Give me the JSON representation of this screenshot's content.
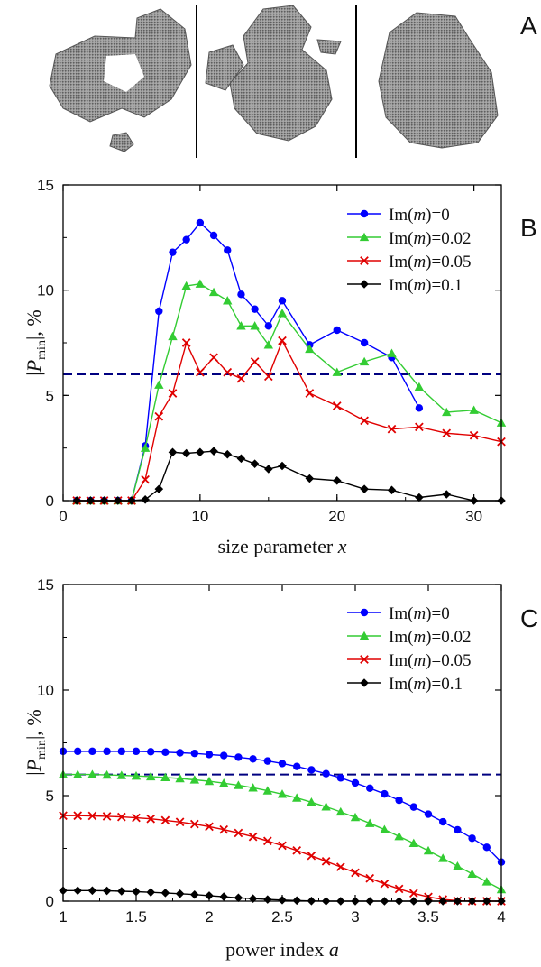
{
  "panel_labels": [
    "A",
    "B",
    "C"
  ],
  "colors": {
    "blue": "#0000ff",
    "green": "#33cc33",
    "red": "#e00000",
    "black": "#000000",
    "reference_line": "#000080",
    "particle_gray": "#8c8c8c"
  },
  "chart_data": [
    {
      "type": "line",
      "panel": "B",
      "xlabel": "size parameter x",
      "ylabel": "|Pmin|, %",
      "xlim": [
        0,
        32
      ],
      "ylim": [
        0,
        15
      ],
      "xticks": [
        "0",
        "10",
        "20",
        "30"
      ],
      "yticks": [
        "0",
        "5",
        "10",
        "15"
      ],
      "reference_line_y": 6,
      "legend_position": "top-right",
      "series": [
        {
          "name": "Im(m)=0",
          "color": "blue",
          "marker": "circle",
          "x": [
            1,
            2,
            3,
            4,
            5,
            6,
            7,
            8,
            9,
            10,
            11,
            12,
            13,
            14,
            15,
            16,
            18,
            20,
            22,
            24,
            26
          ],
          "y": [
            0,
            0,
            0,
            0,
            0,
            2.6,
            9.0,
            11.8,
            12.4,
            13.2,
            12.6,
            11.9,
            9.8,
            9.1,
            8.3,
            9.5,
            7.4,
            8.1,
            7.5,
            6.8,
            4.4
          ]
        },
        {
          "name": "Im(m)=0.02",
          "color": "green",
          "marker": "triangle",
          "x": [
            1,
            2,
            3,
            4,
            5,
            6,
            7,
            8,
            9,
            10,
            11,
            12,
            13,
            14,
            15,
            16,
            18,
            20,
            22,
            24,
            26,
            28,
            30,
            32
          ],
          "y": [
            0,
            0,
            0,
            0,
            0,
            2.5,
            5.5,
            7.8,
            10.2,
            10.3,
            9.9,
            9.5,
            8.3,
            8.3,
            7.4,
            8.9,
            7.2,
            6.1,
            6.6,
            7.0,
            5.4,
            4.2,
            4.3,
            3.7
          ]
        },
        {
          "name": "Im(m)=0.05",
          "color": "red",
          "marker": "cross",
          "x": [
            1,
            2,
            3,
            4,
            5,
            6,
            7,
            8,
            9,
            10,
            11,
            12,
            13,
            14,
            15,
            16,
            18,
            20,
            22,
            24,
            26,
            28,
            30,
            32
          ],
          "y": [
            0,
            0,
            0,
            0,
            0,
            1.0,
            4.0,
            5.1,
            7.5,
            6.1,
            6.8,
            6.1,
            5.8,
            6.6,
            5.9,
            7.6,
            5.1,
            4.5,
            3.8,
            3.4,
            3.5,
            3.2,
            3.1,
            2.8
          ]
        },
        {
          "name": "Im(m)=0.1",
          "color": "black",
          "marker": "diamond",
          "x": [
            1,
            2,
            3,
            4,
            5,
            6,
            7,
            8,
            9,
            10,
            11,
            12,
            13,
            14,
            15,
            16,
            18,
            20,
            22,
            24,
            26,
            28,
            30,
            32
          ],
          "y": [
            0,
            0,
            0,
            0,
            0,
            0.05,
            0.55,
            2.3,
            2.25,
            2.3,
            2.35,
            2.2,
            2.0,
            1.75,
            1.5,
            1.65,
            1.05,
            0.95,
            0.55,
            0.5,
            0.15,
            0.3,
            0,
            0
          ]
        }
      ]
    },
    {
      "type": "line",
      "panel": "C",
      "xlabel": "power index a",
      "ylabel": "|Pmin|, %",
      "xlim": [
        1,
        4
      ],
      "ylim": [
        0,
        15
      ],
      "xticks": [
        "1",
        "1.5",
        "2",
        "2.5",
        "3",
        "3.5",
        "4"
      ],
      "yticks": [
        "0",
        "5",
        "10",
        "15"
      ],
      "reference_line_y": 6,
      "legend_position": "top-right",
      "series": [
        {
          "name": "Im(m)=0",
          "color": "blue",
          "marker": "circle",
          "x": [
            1,
            1.1,
            1.2,
            1.3,
            1.4,
            1.5,
            1.6,
            1.7,
            1.8,
            1.9,
            2,
            2.1,
            2.2,
            2.3,
            2.4,
            2.5,
            2.6,
            2.7,
            2.8,
            2.9,
            3,
            3.1,
            3.2,
            3.3,
            3.4,
            3.5,
            3.6,
            3.7,
            3.8,
            3.9,
            4
          ],
          "y": [
            7.1,
            7.1,
            7.1,
            7.1,
            7.1,
            7.1,
            7.08,
            7.06,
            7.03,
            7.0,
            6.95,
            6.9,
            6.82,
            6.74,
            6.64,
            6.52,
            6.38,
            6.22,
            6.04,
            5.84,
            5.6,
            5.35,
            5.08,
            4.78,
            4.46,
            4.12,
            3.76,
            3.38,
            2.98,
            2.55,
            1.85
          ]
        },
        {
          "name": "Im(m)=0.02",
          "color": "green",
          "marker": "triangle",
          "x": [
            1,
            1.1,
            1.2,
            1.3,
            1.4,
            1.5,
            1.6,
            1.7,
            1.8,
            1.9,
            2,
            2.1,
            2.2,
            2.3,
            2.4,
            2.5,
            2.6,
            2.7,
            2.8,
            2.9,
            3,
            3.1,
            3.2,
            3.3,
            3.4,
            3.5,
            3.6,
            3.7,
            3.8,
            3.9,
            4
          ],
          "y": [
            6.0,
            6.0,
            6.0,
            5.98,
            5.96,
            5.93,
            5.9,
            5.86,
            5.81,
            5.75,
            5.68,
            5.59,
            5.49,
            5.37,
            5.23,
            5.07,
            4.89,
            4.69,
            4.47,
            4.23,
            3.97,
            3.69,
            3.39,
            3.07,
            2.74,
            2.39,
            2.03,
            1.66,
            1.29,
            0.92,
            0.55
          ]
        },
        {
          "name": "Im(m)=0.05",
          "color": "red",
          "marker": "cross",
          "x": [
            1,
            1.1,
            1.2,
            1.3,
            1.4,
            1.5,
            1.6,
            1.7,
            1.8,
            1.9,
            2,
            2.1,
            2.2,
            2.3,
            2.4,
            2.5,
            2.6,
            2.7,
            2.8,
            2.9,
            3,
            3.1,
            3.2,
            3.3,
            3.4,
            3.5,
            3.6,
            3.7,
            3.8,
            3.9,
            4
          ],
          "y": [
            4.05,
            4.05,
            4.04,
            4.02,
            3.99,
            3.95,
            3.9,
            3.83,
            3.75,
            3.65,
            3.53,
            3.39,
            3.23,
            3.05,
            2.85,
            2.63,
            2.4,
            2.15,
            1.89,
            1.62,
            1.35,
            1.08,
            0.82,
            0.58,
            0.37,
            0.2,
            0.08,
            0.02,
            0,
            0,
            0
          ]
        },
        {
          "name": "Im(m)=0.1",
          "color": "black",
          "marker": "diamond",
          "x": [
            1,
            1.1,
            1.2,
            1.3,
            1.4,
            1.5,
            1.6,
            1.7,
            1.8,
            1.9,
            2,
            2.1,
            2.2,
            2.3,
            2.4,
            2.5,
            2.6,
            2.7,
            2.8,
            2.9,
            3,
            3.1,
            3.2,
            3.3,
            3.4,
            3.5,
            3.6,
            3.7,
            3.8,
            3.9,
            4
          ],
          "y": [
            0.5,
            0.5,
            0.5,
            0.49,
            0.47,
            0.45,
            0.42,
            0.39,
            0.35,
            0.31,
            0.26,
            0.21,
            0.16,
            0.12,
            0.08,
            0.05,
            0.03,
            0.01,
            0,
            0,
            0,
            0,
            0,
            0,
            0,
            0,
            0,
            0,
            0,
            0,
            0
          ]
        }
      ]
    }
  ]
}
